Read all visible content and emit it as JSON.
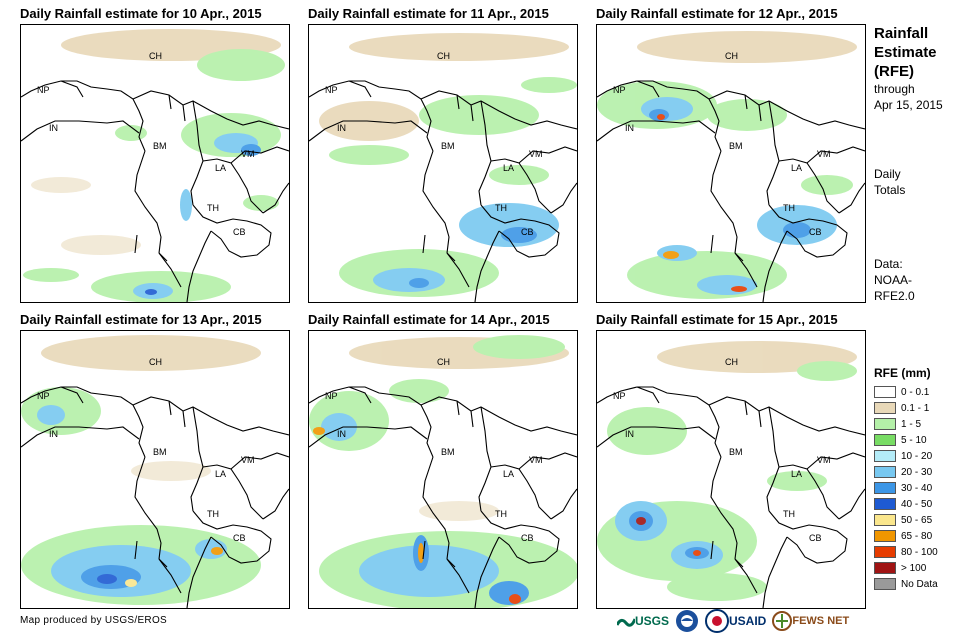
{
  "panels": [
    {
      "title": "Daily Rainfall estimate for 10 Apr., 2015"
    },
    {
      "title": "Daily Rainfall estimate for 11 Apr., 2015"
    },
    {
      "title": "Daily Rainfall estimate for 12 Apr., 2015"
    },
    {
      "title": "Daily Rainfall estimate for 13 Apr., 2015"
    },
    {
      "title": "Daily Rainfall estimate for 14 Apr., 2015"
    },
    {
      "title": "Daily Rainfall estimate for 15 Apr., 2015"
    }
  ],
  "countries": {
    "ch": "CH",
    "np": "NP",
    "in": "IN",
    "bm": "BM",
    "la": "LA",
    "vm": "VM",
    "th": "TH",
    "cb": "CB"
  },
  "sidebar": {
    "title1": "Rainfall",
    "title2": "Estimate",
    "title3": "(RFE)",
    "through": "through",
    "date": "Apr 15, 2015",
    "daily": "Daily",
    "totals": "Totals",
    "data_label": "Data:",
    "noaa": "NOAA-",
    "rfe": "RFE2.0"
  },
  "legend": {
    "title": "RFE (mm)",
    "items": [
      {
        "label": "0 - 0.1",
        "color": "#ffffff"
      },
      {
        "label": "0.1 - 1",
        "color": "#e8d8b8"
      },
      {
        "label": "1 - 5",
        "color": "#b4f0a8"
      },
      {
        "label": "5 - 10",
        "color": "#78dc64"
      },
      {
        "label": "10 - 20",
        "color": "#b4ecf8"
      },
      {
        "label": "20 - 30",
        "color": "#78c8f0"
      },
      {
        "label": "30 - 40",
        "color": "#3c96e6"
      },
      {
        "label": "40 - 50",
        "color": "#1e5ad2"
      },
      {
        "label": "50 - 65",
        "color": "#fae68c"
      },
      {
        "label": "65 - 80",
        "color": "#f09600"
      },
      {
        "label": "80 - 100",
        "color": "#e63c00"
      },
      {
        "label": "> 100",
        "color": "#a01414"
      },
      {
        "label": "No Data",
        "color": "#9a9a9a"
      }
    ]
  },
  "footer": {
    "credit": "Map produced by USGS/EROS",
    "logo_usgs": "USGS",
    "logo_usaid": "USAID",
    "logo_fews": "FEWS NET"
  }
}
